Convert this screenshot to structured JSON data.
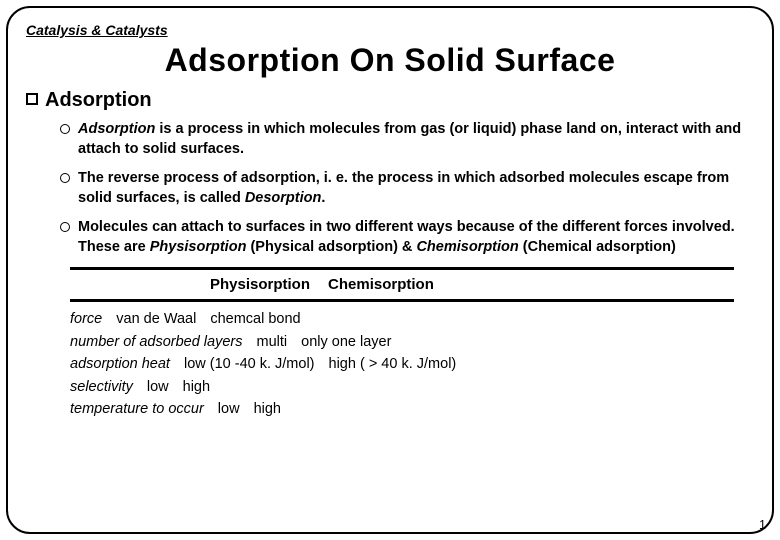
{
  "header": "Catalysis & Catalysts",
  "title": "Adsorption On Solid Surface",
  "section_label": "Adsorption",
  "bullets": [
    {
      "lead": "Adsorption",
      "rest": " is a process in which molecules from gas (or liquid) phase land on,  interact with and attach to solid surfaces."
    },
    {
      "lead": "",
      "rest": "The reverse process of adsorption, i. e. the process in which adsorbed molecules escape from solid surfaces, is called ",
      "trail_em": "Desorption",
      "trail_after": "."
    },
    {
      "lead": "",
      "rest": "Molecules can attach to surfaces in two different ways because of the different forces involved.  These are ",
      "trail_em": "Physisorption",
      "trail_after": " (Physical adsorption) & ",
      "trail_em2": "Chemisorption",
      "trail_after2": " (Chemical adsorption)"
    }
  ],
  "table": {
    "head1": "Physisorption",
    "head2": "Chemisorption",
    "rows": [
      {
        "label": "force",
        "c1": "van de Waal",
        "c2": "chemcal bond"
      },
      {
        "label": "number of adsorbed layers",
        "c1": "multi",
        "c2": "only one layer"
      },
      {
        "label": "adsorption heat",
        "c1": "low (10 -40 k. J/mol)",
        "c2": "high ( > 40 k. J/mol)"
      },
      {
        "label": "selectivity",
        "c1": "low",
        "c2": "high"
      },
      {
        "label": "temperature to occur",
        "c1": "low",
        "c2": "high"
      }
    ]
  },
  "page_number": "1"
}
